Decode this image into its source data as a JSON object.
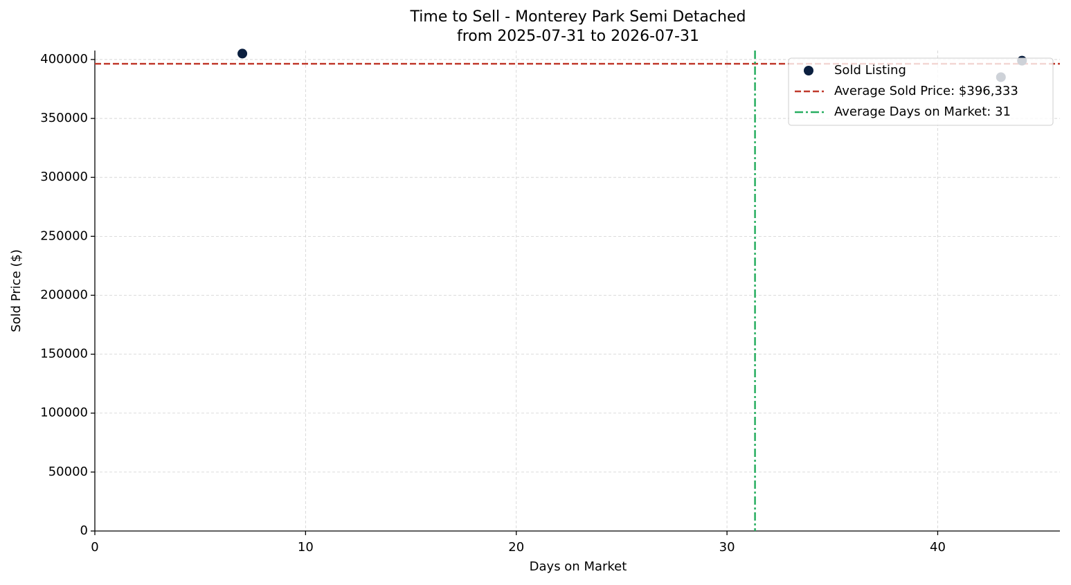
{
  "chart_data": {
    "type": "scatter",
    "title": "Time to Sell - Monterey Park Semi Detached",
    "subtitle": "from 2025-07-31 to 2026-07-31",
    "x_label": "Days on Market",
    "y_label": "Sold Price ($)",
    "x": [
      7,
      43,
      44
    ],
    "series": [
      {
        "name": "Sold Listing",
        "color": "#0b1f3f",
        "values": [
          405000,
          385000,
          399000
        ]
      }
    ],
    "reference_lines": [
      {
        "label": "Average Sold Price: $396,333",
        "orientation": "horizontal",
        "value": 396333,
        "color": "#c0392b",
        "style": "dashed"
      },
      {
        "label": "Average Days on Market: 31",
        "orientation": "vertical",
        "value": 31.33,
        "color": "#27ae60",
        "style": "dashdot"
      }
    ],
    "xlim": [
      0,
      45.8
    ],
    "ylim": [
      0,
      407600
    ],
    "xticks": [
      0,
      10,
      20,
      30,
      40
    ],
    "yticks": [
      0,
      50000,
      100000,
      150000,
      200000,
      250000,
      300000,
      350000,
      400000
    ],
    "grid": true,
    "legend": "upper right"
  }
}
